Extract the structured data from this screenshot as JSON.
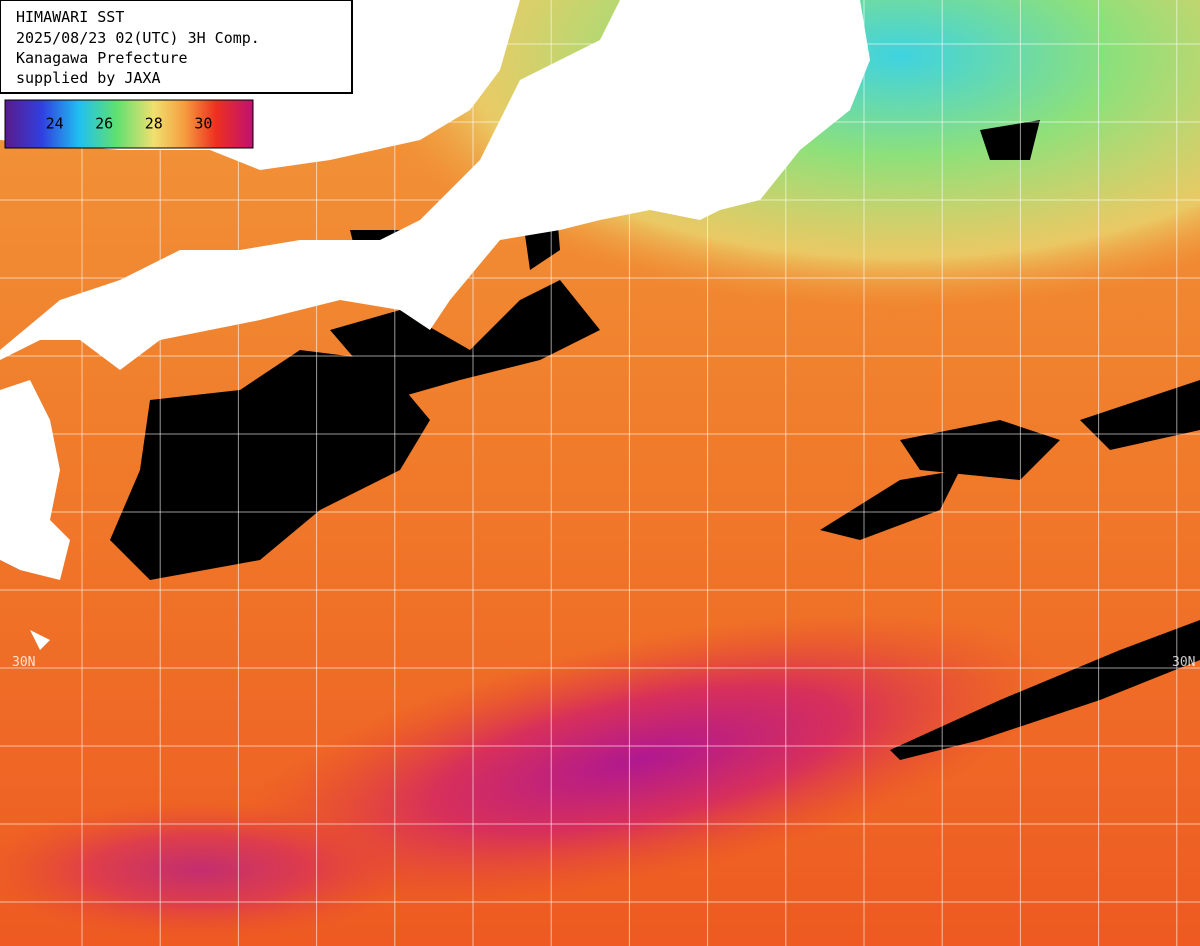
{
  "title_box": {
    "lines": [
      "HIMAWARI SST",
      "2025/08/23 02(UTC) 3H Comp.",
      "Kanagawa Prefecture",
      "supplied by JAXA"
    ]
  },
  "colorbar": {
    "range": [
      22,
      32
    ],
    "ticks": [
      24,
      26,
      28,
      30
    ]
  },
  "grid_labels": {
    "left_lat": "30N",
    "right_lat": "30N"
  }
}
